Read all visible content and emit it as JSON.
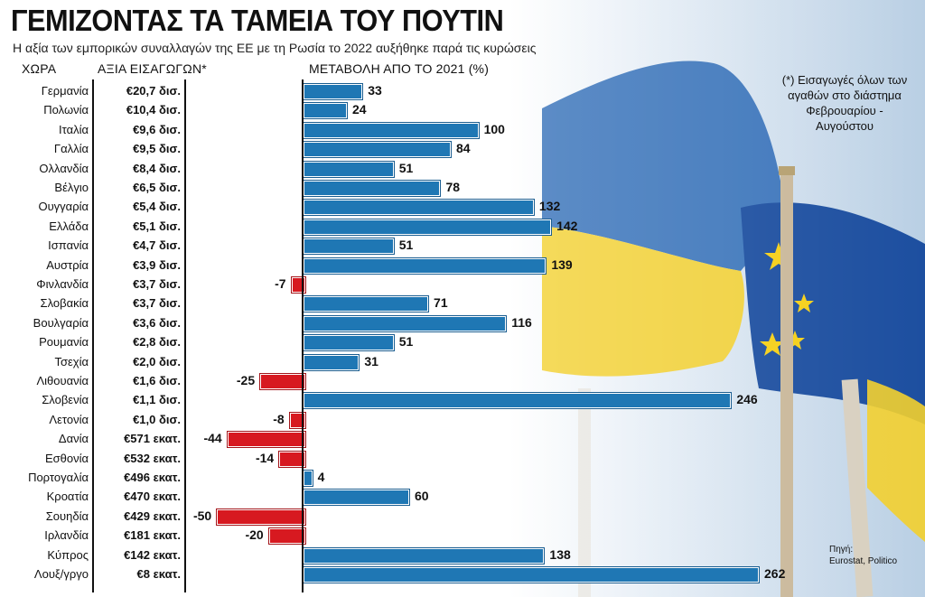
{
  "title": "ΓΕΜΙΖΟΝΤΑΣ ΤΑ ΤΑΜΕΙΑ ΤΟΥ ΠΟΥΤΙΝ",
  "subtitle": "Η αξία των εμπορικών συναλλαγών της ΕΕ με τη Ρωσία το 2022 αυξήθηκε παρά τις κυρώσεις",
  "headers": {
    "country": "ΧΩΡΑ",
    "imports": "ΑΞΙΑ ΕΙΣΑΓΩΓΩΝ*",
    "change": "ΜΕΤΑΒΟΛΗ ΑΠΟ ΤΟ 2021 (%)"
  },
  "note": "(*) Εισαγωγές όλων των αγαθών στο διάστημα Φεβρουαρίου - Αυγούστου",
  "source": {
    "label": "Πηγή:",
    "text": "Eurostat, Politico"
  },
  "colors": {
    "positive": "#1f77b4",
    "negative": "#d71920"
  },
  "chart_data": {
    "type": "bar",
    "orientation": "horizontal",
    "title": "ΓΕΜΙΖΟΝΤΑΣ ΤΑ ΤΑΜΕΙΑ ΤΟΥ ΠΟΥΤΙΝ",
    "xlabel": "ΜΕΤΑΒΟΛΗ ΑΠΟ ΤΟ 2021 (%)",
    "xlim": [
      -50,
      262
    ],
    "categories": [
      "Γερμανία",
      "Πολωνία",
      "Ιταλία",
      "Γαλλία",
      "Ολλανδία",
      "Βέλγιο",
      "Ουγγαρία",
      "Ελλάδα",
      "Ισπανία",
      "Αυστρία",
      "Φινλανδία",
      "Σλοβακία",
      "Βουλγαρία",
      "Ρουμανία",
      "Τσεχία",
      "Λιθουανία",
      "Σλοβενία",
      "Λετονία",
      "Δανία",
      "Εσθονία",
      "Πορτογαλία",
      "Κροατία",
      "Σουηδία",
      "Ιρλανδία",
      "Κύπρος",
      "Λουξ/γργο"
    ],
    "imports": [
      "€20,7 δισ.",
      "€10,4 δισ.",
      "€9,6 δισ.",
      "€9,5 δισ.",
      "€8,4 δισ.",
      "€6,5 δισ.",
      "€5,4 δισ.",
      "€5,1 δισ.",
      "€4,7 δισ.",
      "€3,9 δισ.",
      "€3,7 δισ.",
      "€3,7 δισ.",
      "€3,6 δισ.",
      "€2,8 δισ.",
      "€2,0 δισ.",
      "€1,6 δισ.",
      "€1,1 δισ.",
      "€1,0 δισ.",
      "€571 εκατ.",
      "€532 εκατ.",
      "€496 εκατ.",
      "€470 εκατ.",
      "€429 εκατ.",
      "€181 εκατ.",
      "€142 εκατ.",
      "€8 εκατ."
    ],
    "values": [
      33,
      24,
      100,
      84,
      51,
      78,
      132,
      142,
      51,
      139,
      -7,
      71,
      116,
      51,
      31,
      -25,
      246,
      -8,
      -44,
      -14,
      4,
      60,
      -50,
      -20,
      138,
      262
    ],
    "value_labels": [
      "33",
      "24",
      "100",
      "84",
      "51",
      "78",
      "132",
      "142",
      "51",
      "139",
      "-7",
      "71",
      "116",
      "51",
      "31",
      "-25",
      "246",
      "-8",
      "-44",
      "-14",
      "4",
      "60",
      "-50",
      "-20",
      "138",
      "262"
    ]
  }
}
